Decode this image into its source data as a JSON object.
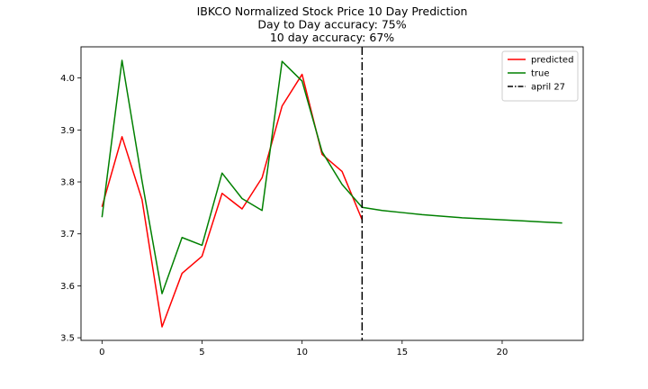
{
  "chart_data": {
    "type": "line",
    "title_lines": [
      "IBKCO Normalized Stock Price 10 Day Prediction",
      "Day to Day accuracy: 75%",
      "10 day accuracy: 67%"
    ],
    "xlabel": "",
    "ylabel": "",
    "xlim": [
      -1.05,
      24.05
    ],
    "ylim": [
      3.495,
      4.06
    ],
    "xticks": [
      0,
      5,
      10,
      15,
      20
    ],
    "xtick_labels": [
      "0",
      "5",
      "10",
      "15",
      "20"
    ],
    "yticks": [
      3.5,
      3.6,
      3.7,
      3.8,
      3.9,
      4.0
    ],
    "ytick_labels": [
      "3.5",
      "3.6",
      "3.7",
      "3.8",
      "3.9",
      "4.0"
    ],
    "grid": false,
    "legend_position": "top-right",
    "series": [
      {
        "name": "predicted",
        "color": "#ff0000",
        "x": [
          0,
          1,
          2,
          3,
          4,
          5,
          6,
          7,
          8,
          9,
          10,
          11,
          12,
          13
        ],
        "values": [
          3.752,
          3.887,
          3.766,
          3.521,
          3.624,
          3.657,
          3.778,
          3.748,
          3.808,
          3.946,
          4.007,
          3.853,
          3.82,
          3.727
        ]
      },
      {
        "name": "true",
        "color": "#008000",
        "x": [
          0,
          1,
          2,
          3,
          4,
          5,
          6,
          7,
          8,
          9,
          10,
          11,
          12,
          13,
          14,
          15,
          16,
          17,
          18,
          19,
          20,
          21,
          22,
          23
        ],
        "values": [
          3.732,
          4.034,
          3.802,
          3.585,
          3.693,
          3.678,
          3.817,
          3.768,
          3.745,
          4.032,
          3.994,
          3.858,
          3.795,
          3.751,
          3.745,
          3.741,
          3.737,
          3.734,
          3.731,
          3.729,
          3.727,
          3.725,
          3.723,
          3.721
        ]
      }
    ],
    "vline": {
      "name": "april 27",
      "x": 13,
      "color": "#000000",
      "style": "dash-dot"
    }
  }
}
